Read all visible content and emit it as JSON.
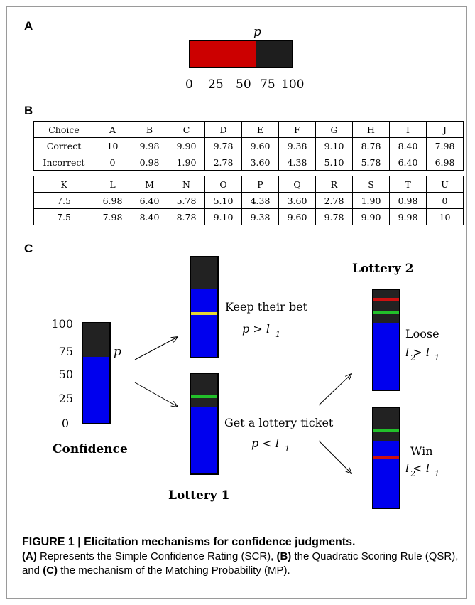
{
  "panels": {
    "a": "A",
    "b": "B",
    "c": "C"
  },
  "panel_a": {
    "p_symbol": "p",
    "fill_value": 65,
    "scale_max": 100,
    "ticks": [
      "0",
      "25",
      "50",
      "75",
      "100"
    ],
    "fill_color": "#cc0000",
    "empty_color": "#1e1e1e"
  },
  "panel_b": {
    "table1": {
      "header": [
        "Choice",
        "A",
        "B",
        "C",
        "D",
        "E",
        "F",
        "G",
        "H",
        "I",
        "J"
      ],
      "rows": [
        [
          "Correct",
          "10",
          "9.98",
          "9.90",
          "9.78",
          "9.60",
          "9.38",
          "9.10",
          "8.78",
          "8.40",
          "7.98"
        ],
        [
          "Incorrect",
          "0",
          "0.98",
          "1.90",
          "2.78",
          "3.60",
          "4.38",
          "5.10",
          "5.78",
          "6.40",
          "6.98"
        ]
      ]
    },
    "table2": {
      "header": [
        "K",
        "L",
        "M",
        "N",
        "O",
        "P",
        "Q",
        "R",
        "S",
        "T",
        "U"
      ],
      "rows": [
        [
          "7.5",
          "6.98",
          "6.40",
          "5.78",
          "5.10",
          "4.38",
          "3.60",
          "2.78",
          "1.90",
          "0.98",
          "0"
        ],
        [
          "7.5",
          "7.98",
          "8.40",
          "8.78",
          "9.10",
          "9.38",
          "9.60",
          "9.78",
          "9.90",
          "9.98",
          "10"
        ]
      ]
    }
  },
  "panel_c": {
    "confidence_ticks": [
      "100",
      "75",
      "50",
      "25",
      "0"
    ],
    "p_symbol": "p",
    "confidence_label": "Confidence",
    "keep_bet": "Keep their bet",
    "keep_cond": "p > l",
    "lottery_ticket": "Get a lottery ticket",
    "ticket_cond": "p < l",
    "lottery1_label": "Lottery 1",
    "lottery2_label": "Lottery 2",
    "loose": "Loose",
    "loose_cond": "l > l",
    "win": "Win",
    "win_cond": "l < l",
    "sub1": "1",
    "sub2": "2",
    "colors": {
      "blue": "#0000ee",
      "dark": "#222222",
      "yellow": "#e8d832",
      "green": "#22c02a",
      "red": "#cc1111"
    }
  },
  "caption": {
    "title": "FIGURE 1 | Elicitation mechanisms for confidence judgments.",
    "a_tag": "(A)",
    "a_text": " Represents the Simple Confidence Rating (SCR), ",
    "b_tag": "(B)",
    "b_text": " the Quadratic Scoring Rule (QSR), and ",
    "c_tag": "(C)",
    "c_text": " the mechanism of the Matching Probability (MP)."
  }
}
